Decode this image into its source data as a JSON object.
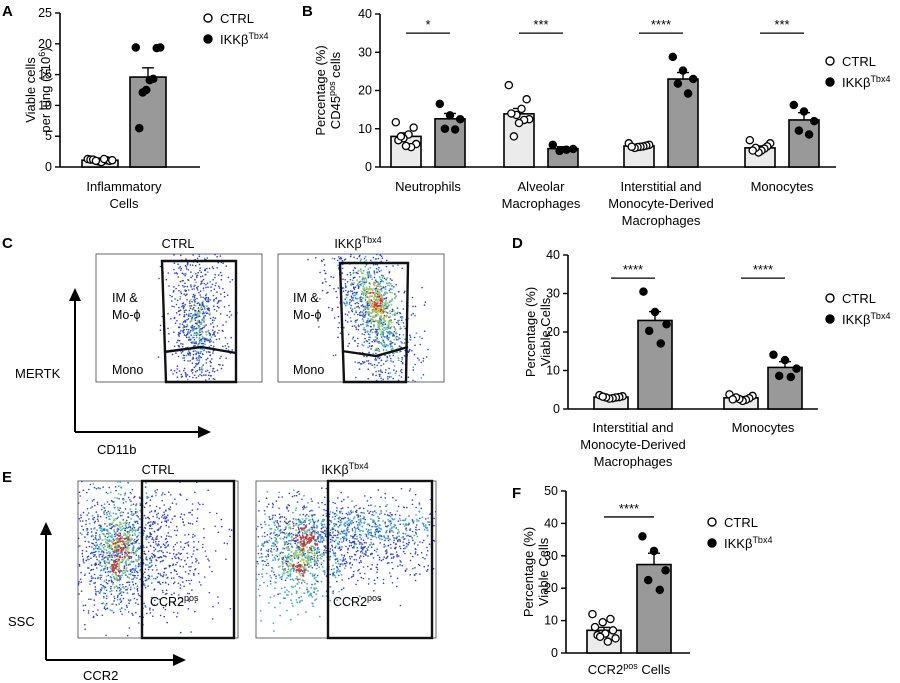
{
  "panels": {
    "a": {
      "letter": "A"
    },
    "b": {
      "letter": "B"
    },
    "c": {
      "letter": "C"
    },
    "d": {
      "letter": "D"
    },
    "e": {
      "letter": "E"
    },
    "f": {
      "letter": "F"
    }
  },
  "legend": {
    "ctrl": "CTRL",
    "ikk_base": "IKKβ",
    "ikk_sup": "Tbx4"
  },
  "colors": {
    "ctrl_fill": "#ebebeb",
    "ikk_fill": "#999999",
    "edge": "#000000"
  },
  "chart_data": [
    {
      "id": "A",
      "type": "bar",
      "ylabel": [
        "Viable cells",
        "per lung (x10",
        "6",
        ")"
      ],
      "yticks": [
        "0",
        "5",
        "10",
        "15",
        "20",
        "25"
      ],
      "ylim": [
        0,
        25
      ],
      "categories": [
        [
          "Inflammatory",
          "Cells"
        ]
      ],
      "series": [
        {
          "name": "CTRL",
          "values": [
            1.1
          ],
          "sem": [
            0.15
          ],
          "points": [
            [
              1.3,
              1.1,
              0.9,
              1.2,
              1.0,
              0.8,
              1.2,
              1.1,
              1.3,
              1.0
            ]
          ]
        },
        {
          "name": "IKKβTbx4",
          "values": [
            14.6
          ],
          "sem": [
            1.5
          ],
          "points": [
            [
              19.4,
              19.4,
              19.3,
              14.3,
              14.1,
              12.5,
              12.1,
              6.3
            ]
          ]
        }
      ]
    },
    {
      "id": "B",
      "type": "bar",
      "ylabel": [
        "Percentage (%)",
        "CD45",
        "pos",
        " cells"
      ],
      "yticks": [
        "0",
        "10",
        "20",
        "30",
        "40"
      ],
      "ylim": [
        0,
        40
      ],
      "categories": [
        [
          "Neutrophils"
        ],
        [
          "Alveolar",
          "Macrophages"
        ],
        [
          "Interstitial and",
          "Monocyte-Derived",
          "Macrophages"
        ],
        [
          "Monocytes"
        ]
      ],
      "series": [
        {
          "name": "CTRL",
          "values": [
            8.0,
            13.9,
            5.5,
            5.0
          ],
          "sem": [
            0.9,
            1.4,
            0.3,
            0.5
          ],
          "points": [
            [
              11.7,
              10.3,
              8.5,
              7.5,
              7.0,
              6.0,
              5.2,
              5.5,
              8.0
            ],
            [
              21.4,
              17.7,
              15.2,
              13.6,
              14.0,
              12.5,
              12.3,
              11.5,
              8.0
            ],
            [
              6.2,
              5.8,
              5.6,
              5.4,
              5.3,
              5.2,
              5.0,
              5.3
            ],
            [
              7.0,
              6.2,
              5.4,
              4.8,
              4.3,
              3.8,
              5.0,
              4.3
            ]
          ]
        },
        {
          "name": "IKKβTbx4",
          "values": [
            12.6,
            4.8,
            23.0,
            12.3
          ],
          "sem": [
            1.4,
            0.5,
            1.7,
            1.9
          ],
          "points": [
            [
              16.5,
              13.5,
              12.5,
              10.0,
              9.8
            ],
            [
              5.8,
              4.7,
              4.5,
              4.2
            ],
            [
              28.8,
              25.2,
              23.0,
              21.8,
              19.2
            ],
            [
              16.2,
              14.5,
              12.0,
              9.5,
              8.5
            ]
          ]
        }
      ],
      "significance": [
        "*",
        "***",
        "****",
        "***"
      ]
    },
    {
      "id": "D",
      "type": "bar",
      "ylabel": [
        "Percentage (%)",
        "Viable Cells"
      ],
      "yticks": [
        "0",
        "10",
        "20",
        "30",
        "40"
      ],
      "ylim": [
        0,
        40
      ],
      "categories": [
        [
          "Interstitial and",
          "Monocyte-Derived",
          "Macrophages"
        ],
        [
          "Monocytes"
        ]
      ],
      "series": [
        {
          "name": "CTRL",
          "values": [
            3.1,
            2.9
          ],
          "sem": [
            0.3,
            0.3
          ],
          "points": [
            [
              3.6,
              3.3,
              3.1,
              3.0,
              2.8,
              2.7,
              3.0,
              3.2
            ],
            [
              3.8,
              3.4,
              2.8,
              2.4,
              2.1,
              2.6,
              3.0,
              2.5
            ]
          ]
        },
        {
          "name": "IKKβTbx4",
          "values": [
            23.0,
            10.8
          ],
          "sem": [
            2.3,
            1.5
          ],
          "points": [
            [
              30.5,
              25.2,
              22.0,
              20.3,
              17.0
            ],
            [
              14.1,
              12.7,
              10.5,
              8.6,
              8.3
            ]
          ]
        }
      ],
      "significance": [
        "****",
        "****"
      ]
    },
    {
      "id": "F",
      "type": "bar",
      "ylabel": [
        "Percentage (%)",
        "Viable Cells"
      ],
      "yticks": [
        "0",
        "10",
        "20",
        "30",
        "40",
        "50"
      ],
      "ylim": [
        0,
        50
      ],
      "categories": [
        [
          "CCR2",
          "pos",
          " Cells"
        ]
      ],
      "series": [
        {
          "name": "CTRL",
          "values": [
            7.0
          ],
          "sem": [
            0.9
          ],
          "points": [
            [
              12.0,
              10.5,
              9.5,
              8.0,
              7.0,
              6.0,
              5.5,
              4.5,
              3.5,
              5.0
            ]
          ]
        },
        {
          "name": "IKKβTbx4",
          "values": [
            27.3
          ],
          "sem": [
            3.5
          ],
          "points": [
            [
              36.0,
              31.5,
              25.5,
              22.5,
              19.5
            ]
          ]
        }
      ],
      "significance": [
        "****"
      ]
    }
  ],
  "flow": {
    "c": {
      "ctrl_title": "CTRL",
      "ikk_base": "IKKβ",
      "ikk_sup": "Tbx4",
      "gate_upper": [
        "IM &",
        "Mo-ϕ"
      ],
      "gate_lower": "Mono",
      "yaxis": "MERTK",
      "xaxis": "CD11b"
    },
    "e": {
      "ctrl_title": "CTRL",
      "ikk_base": "IKKβ",
      "ikk_sup": "Tbx4",
      "gate_base": "CCR2",
      "gate_sup": "pos",
      "yaxis": "SSC",
      "xaxis": "CCR2"
    }
  }
}
